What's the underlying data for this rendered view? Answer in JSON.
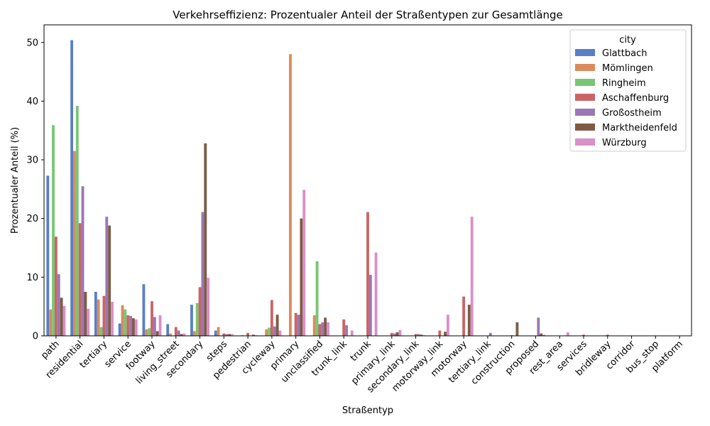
{
  "chart_data": {
    "type": "bar",
    "title": "Verkehrseffizienz: Prozentualer Anteil der Straßentypen zur Gesamtlänge",
    "xlabel": "Straßentyp",
    "ylabel": "Prozentualer Anteil (%)",
    "ylim": [
      0,
      53
    ],
    "yticks": [
      0,
      10,
      20,
      30,
      40,
      50
    ],
    "legend_title": "city",
    "legend_position": "top-right",
    "grid": false,
    "categories": [
      "path",
      "residential",
      "tertiary",
      "service",
      "footway",
      "living_street",
      "secondary",
      "steps",
      "pedestrian",
      "cycleway",
      "primary",
      "unclassified",
      "trunk_link",
      "trunk",
      "primary_link",
      "secondary_link",
      "motorway_link",
      "motorway",
      "tertiary_link",
      "construction",
      "proposed",
      "rest_area",
      "services",
      "bridleway",
      "corridor",
      "bus_stop",
      "platform"
    ],
    "series": [
      {
        "name": "Glattbach",
        "color": "#5a7fc4",
        "values": [
          27.3,
          50.4,
          7.5,
          2.1,
          8.8,
          2.0,
          5.3,
          0.9,
          0,
          0,
          0,
          0,
          0,
          0,
          0,
          0,
          0,
          0,
          0,
          0,
          0,
          0,
          0,
          0,
          0,
          0,
          0
        ]
      },
      {
        "name": "Mömlingen",
        "color": "#dc8a5c",
        "values": [
          4.5,
          31.5,
          6.2,
          5.2,
          1.1,
          0.4,
          0.8,
          1.5,
          0.1,
          1.1,
          48.0,
          3.5,
          0,
          0,
          0,
          0,
          0,
          0,
          0,
          0,
          0,
          0,
          0,
          0,
          0,
          0,
          0
        ]
      },
      {
        "name": "Ringheim",
        "color": "#78c674",
        "values": [
          35.9,
          39.2,
          1.5,
          4.5,
          1.3,
          0,
          5.6,
          0,
          0,
          1.4,
          0,
          12.7,
          0,
          0,
          0,
          0,
          0,
          0,
          0,
          0,
          0,
          0,
          0,
          0,
          0,
          0,
          0
        ]
      },
      {
        "name": "Aschaffenburg",
        "color": "#c96566",
        "values": [
          16.9,
          19.2,
          6.8,
          3.5,
          5.9,
          1.5,
          8.3,
          0.4,
          0.5,
          6.1,
          3.9,
          2.0,
          2.8,
          21.1,
          0.5,
          0.3,
          0.9,
          6.7,
          0,
          0.1,
          0,
          0,
          0.2,
          0.2,
          0,
          0,
          0
        ]
      },
      {
        "name": "Großostheim",
        "color": "#9a77b5",
        "values": [
          10.5,
          25.5,
          20.3,
          3.4,
          3.2,
          0.9,
          21.1,
          0.3,
          0,
          1.6,
          3.6,
          2.3,
          1.8,
          10.4,
          0.4,
          0.3,
          0,
          0,
          0.5,
          0,
          3.1,
          0,
          0,
          0,
          0,
          0,
          0
        ]
      },
      {
        "name": "Marktheidenfeld",
        "color": "#7e5c44",
        "values": [
          6.5,
          7.5,
          18.8,
          3.0,
          0.8,
          0.3,
          32.8,
          0.3,
          0.2,
          3.6,
          20.0,
          3.1,
          0,
          0,
          0.6,
          0.2,
          0.7,
          5.3,
          0,
          2.3,
          0.4,
          0,
          0,
          0,
          0,
          0,
          0
        ]
      },
      {
        "name": "Würzburg",
        "color": "#d98fc8",
        "values": [
          5.1,
          4.6,
          5.8,
          2.8,
          3.5,
          0.4,
          9.9,
          0.3,
          0.1,
          0.9,
          24.9,
          2.3,
          0.9,
          14.2,
          1.0,
          0.1,
          3.6,
          20.3,
          0,
          0,
          0.2,
          0.6,
          0,
          0,
          0,
          0,
          0
        ]
      }
    ]
  }
}
